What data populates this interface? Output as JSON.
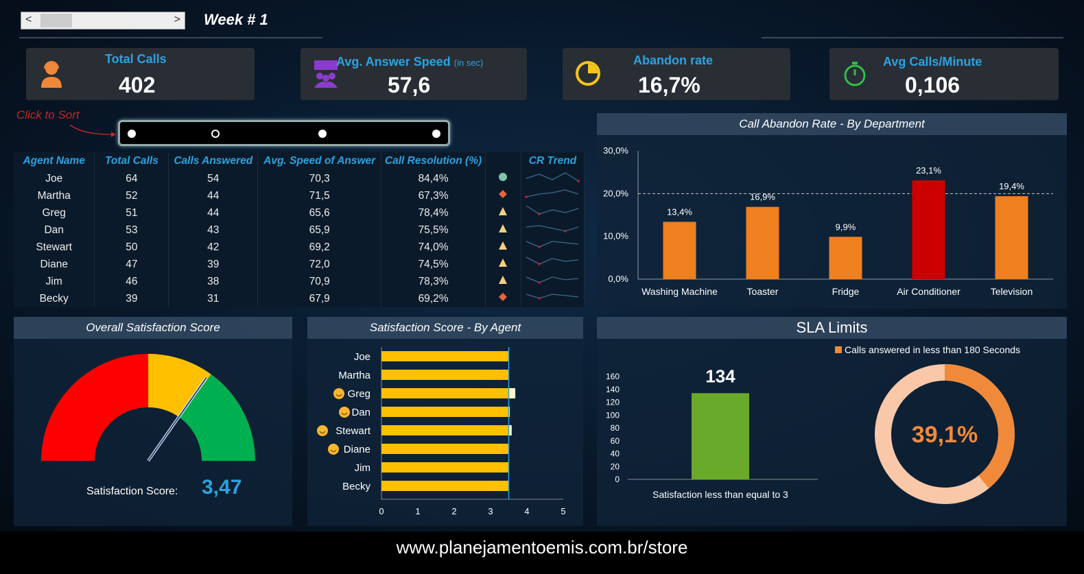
{
  "header": {
    "week_label": "Week # 1",
    "prev": "<",
    "next": ">"
  },
  "kpis": [
    {
      "title": "Total Calls",
      "value": "402",
      "icon": "headset-agent-icon",
      "icon_color": "#f0883a"
    },
    {
      "title": "Avg. Answer Speed",
      "suffix": "(in sec)",
      "value": "57,6",
      "icon": "group-meeting-icon",
      "icon_color": "#8a3ccc"
    },
    {
      "title": "Abandon rate",
      "value": "16,7%",
      "icon": "pie-clock-icon",
      "icon_color": "#f5c518"
    },
    {
      "title": "Avg Calls/Minute",
      "value": "0,106",
      "icon": "stopwatch-icon",
      "icon_color": "#2fbf4a"
    }
  ],
  "sort": {
    "label": "Click to Sort",
    "selected_index": 1
  },
  "table": {
    "columns": [
      "Agent Name",
      "Total Calls",
      "Calls Answered",
      "Avg. Speed of Answer",
      "Call Resolution (%)",
      "",
      "CR Trend"
    ],
    "rows": [
      {
        "name": "Joe",
        "total": "64",
        "answered": "54",
        "speed": "70,3",
        "resolution": "84,4%",
        "status": "circle-green"
      },
      {
        "name": "Martha",
        "total": "52",
        "answered": "44",
        "speed": "71,5",
        "resolution": "67,3%",
        "status": "diamond-red"
      },
      {
        "name": "Greg",
        "total": "51",
        "answered": "44",
        "speed": "65,6",
        "resolution": "78,4%",
        "status": "triangle-yellow"
      },
      {
        "name": "Dan",
        "total": "53",
        "answered": "43",
        "speed": "65,9",
        "resolution": "75,5%",
        "status": "triangle-yellow"
      },
      {
        "name": "Stewart",
        "total": "50",
        "answered": "42",
        "speed": "69,2",
        "resolution": "74,0%",
        "status": "triangle-yellow"
      },
      {
        "name": "Diane",
        "total": "47",
        "answered": "39",
        "speed": "72,0",
        "resolution": "74,5%",
        "status": "triangle-yellow"
      },
      {
        "name": "Jim",
        "total": "46",
        "answered": "38",
        "speed": "70,9",
        "resolution": "78,3%",
        "status": "triangle-yellow"
      },
      {
        "name": "Becky",
        "total": "39",
        "answered": "31",
        "speed": "67,9",
        "resolution": "69,2%",
        "status": "diamond-red"
      }
    ]
  },
  "chart_data": [
    {
      "type": "bar",
      "title": "Call Abandon Rate - By Department",
      "categories": [
        "Washing Machine",
        "Toaster",
        "Fridge",
        "Air Conditioner",
        "Television"
      ],
      "values": [
        13.4,
        16.9,
        9.9,
        23.1,
        19.4
      ],
      "labels": [
        "13,4%",
        "16,9%",
        "9,9%",
        "23,1%",
        "19,4%"
      ],
      "ylim": [
        0,
        30
      ],
      "yticks": [
        "0,0%",
        "10,0%",
        "20,0%",
        "30,0%"
      ],
      "reference_line": 20,
      "colors": [
        "#f07f1e",
        "#f07f1e",
        "#f07f1e",
        "#cc0000",
        "#f07f1e"
      ]
    },
    {
      "type": "gauge",
      "title": "Overall Satisfaction Score",
      "value": 3.47,
      "value_label": "3,47",
      "caption": "Satisfaction Score:",
      "range": [
        0,
        5
      ],
      "bands": [
        {
          "to": 2.5,
          "color": "#ff0000"
        },
        {
          "to": 3.5,
          "color": "#ffc000"
        },
        {
          "to": 5,
          "color": "#00b050"
        }
      ]
    },
    {
      "type": "bar",
      "orientation": "horizontal",
      "title": "Satisfaction Score - By Agent",
      "categories": [
        "Joe",
        "Martha",
        "Greg",
        "Dan",
        "Stewart",
        "Diane",
        "Jim",
        "Becky"
      ],
      "values": [
        3.5,
        3.5,
        3.68,
        3.53,
        3.58,
        3.5,
        3.5,
        3.5
      ],
      "smiley": [
        false,
        false,
        true,
        true,
        true,
        true,
        false,
        false
      ],
      "xlim": [
        0,
        5
      ],
      "xticks": [
        "0",
        "1",
        "2",
        "3",
        "4",
        "5"
      ],
      "reference_line": 3.5
    },
    {
      "type": "bar",
      "title": "SLA Limits",
      "categories": [
        "Satisfaction less than equal to 3"
      ],
      "values": [
        134
      ],
      "labels": [
        "134"
      ],
      "ylim": [
        0,
        160
      ],
      "yticks": [
        "0",
        "20",
        "40",
        "60",
        "80",
        "100",
        "120",
        "140",
        "160"
      ],
      "color": "#6aaa2a"
    },
    {
      "type": "pie",
      "subtype": "donut",
      "legend": "Calls answered in less than 180 Seconds",
      "legend_placement": "top",
      "value": 39.1,
      "value_label": "39,1%",
      "colors": [
        "#f08a3a",
        "#f8c8a8"
      ]
    }
  ],
  "footer": "www.planejamentoemis.com.br/store"
}
